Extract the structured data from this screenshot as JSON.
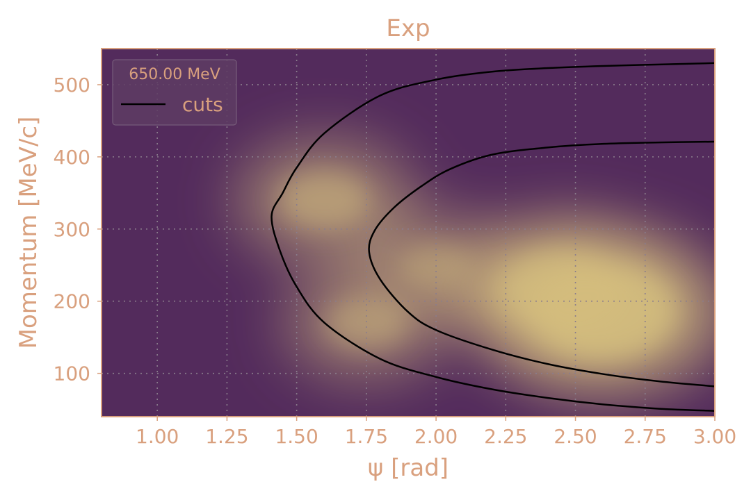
{
  "chart_data": {
    "type": "heatmap",
    "title": "Exp",
    "xlabel": "ψ [rad]",
    "ylabel": "Momentum [MeV/c]",
    "xlim": [
      0.8,
      3.0
    ],
    "ylim": [
      40,
      550
    ],
    "x_ticks": [
      1.0,
      1.25,
      1.5,
      1.75,
      2.0,
      2.25,
      2.5,
      2.75,
      3.0
    ],
    "x_tick_labels": [
      "1.00",
      "1.25",
      "1.50",
      "1.75",
      "2.00",
      "2.25",
      "2.50",
      "2.75",
      "3.00"
    ],
    "y_ticks": [
      100,
      200,
      300,
      400,
      500
    ],
    "y_tick_labels": [
      "100",
      "200",
      "300",
      "400",
      "500"
    ],
    "grid": true,
    "legend": {
      "title": "650.00 MeV",
      "entries": [
        "cuts"
      ],
      "placement": "top-left"
    },
    "density_peaks": [
      {
        "psi": 2.6,
        "p": 185,
        "level": 1.0
      },
      {
        "psi": 2.45,
        "p": 215,
        "level": 0.75
      },
      {
        "psi": 1.6,
        "p": 340,
        "level": 0.45
      },
      {
        "psi": 1.75,
        "p": 170,
        "level": 0.35
      },
      {
        "psi": 2.0,
        "p": 250,
        "level": 0.25
      }
    ],
    "series": [
      {
        "name": "cuts",
        "role": "outer",
        "points": [
          [
            3.0,
            530
          ],
          [
            2.8,
            528
          ],
          [
            2.6,
            526
          ],
          [
            2.4,
            523
          ],
          [
            2.2,
            518
          ],
          [
            2.0,
            507
          ],
          [
            1.8,
            485
          ],
          [
            1.6,
            433
          ],
          [
            1.5,
            385
          ],
          [
            1.45,
            350
          ],
          [
            1.41,
            318
          ],
          [
            1.44,
            270
          ],
          [
            1.5,
            220
          ],
          [
            1.6,
            170
          ],
          [
            1.8,
            120
          ],
          [
            2.0,
            95
          ],
          [
            2.2,
            78
          ],
          [
            2.4,
            66
          ],
          [
            2.6,
            57
          ],
          [
            2.8,
            51
          ],
          [
            3.0,
            48
          ]
        ]
      },
      {
        "name": "cuts",
        "role": "inner",
        "points": [
          [
            3.0,
            421
          ],
          [
            2.8,
            420
          ],
          [
            2.6,
            418
          ],
          [
            2.4,
            413
          ],
          [
            2.2,
            403
          ],
          [
            2.05,
            383
          ],
          [
            1.95,
            360
          ],
          [
            1.85,
            330
          ],
          [
            1.78,
            298
          ],
          [
            1.76,
            268
          ],
          [
            1.8,
            230
          ],
          [
            1.9,
            185
          ],
          [
            2.0,
            160
          ],
          [
            2.2,
            133
          ],
          [
            2.4,
            113
          ],
          [
            2.6,
            99
          ],
          [
            2.8,
            89
          ],
          [
            3.0,
            82
          ]
        ]
      }
    ],
    "colors": {
      "background": "#532b5c",
      "density_high": "#d4bd7e",
      "cuts": "#000000",
      "text": "#d9a07e",
      "grid": "#8a7d8c"
    }
  }
}
